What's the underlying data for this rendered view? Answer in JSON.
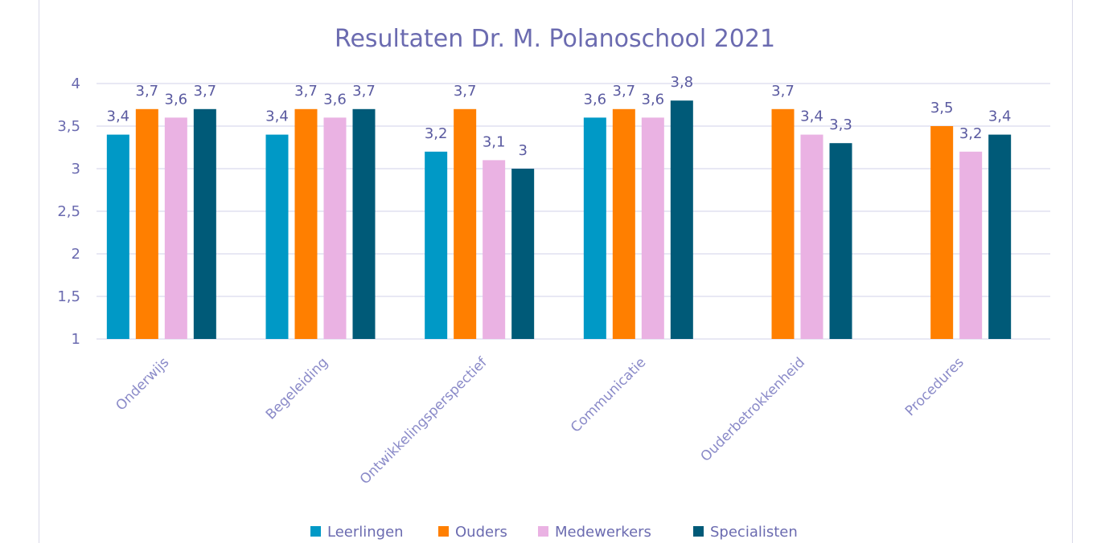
{
  "chart_data": {
    "type": "bar",
    "title": "Resultaten Dr. M. Polanoschool 2021",
    "categories": [
      "Onderwijs",
      "Begeleiding",
      "Ontwikkelingsperspectief",
      "Communicatie",
      "Ouderbetrokkenheid",
      "Procedures"
    ],
    "series": [
      {
        "name": "Leerlingen",
        "color": "#0099c6",
        "values": [
          3.4,
          3.4,
          3.2,
          3.6,
          null,
          null
        ],
        "labels": [
          "3,4",
          "3,4",
          "3,2",
          "3,6",
          "",
          ""
        ]
      },
      {
        "name": "Ouders",
        "color": "#ff7f00",
        "values": [
          3.7,
          3.7,
          3.7,
          3.7,
          3.7,
          3.5
        ],
        "labels": [
          "3,7",
          "3,7",
          "3,7",
          "3,7",
          "3,7",
          "3,5"
        ]
      },
      {
        "name": "Medewerkers",
        "color": "#eab2e3",
        "values": [
          3.6,
          3.6,
          3.1,
          3.6,
          3.4,
          3.2
        ],
        "labels": [
          "3,6",
          "3,6",
          "3,1",
          "3,6",
          "3,4",
          "3,2"
        ]
      },
      {
        "name": "Specialisten",
        "color": "#005a78",
        "values": [
          3.7,
          3.7,
          3.0,
          3.8,
          3.3,
          3.4
        ],
        "labels": [
          "3,7",
          "3,7",
          "3",
          "3,8",
          "3,3",
          "3,4"
        ]
      }
    ],
    "ylim": [
      1,
      4
    ],
    "yticks": [
      1,
      1.5,
      2,
      2.5,
      3,
      3.5,
      4
    ],
    "ytick_labels": [
      "1",
      "1,5",
      "2",
      "2,5",
      "3",
      "3,5",
      "4"
    ],
    "grid": true,
    "legend_position": "bottom"
  }
}
